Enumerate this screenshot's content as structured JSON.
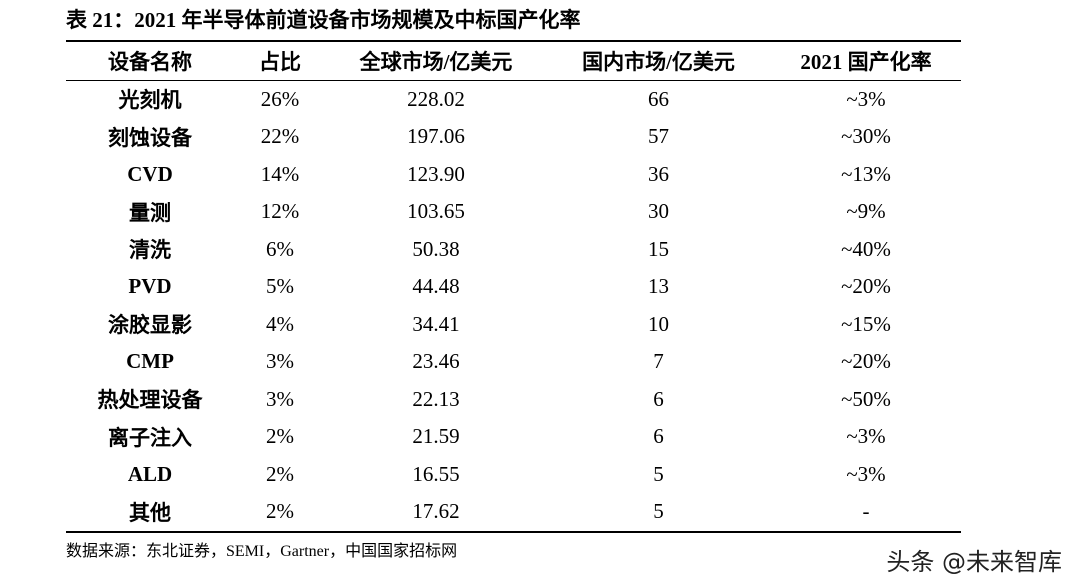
{
  "header": {
    "title": "表 21：2021 年半导体前道设备市场规模及中标国产化率"
  },
  "table": {
    "columns": [
      "设备名称",
      "占比",
      "全球市场/亿美元",
      "国内市场/亿美元",
      "2021 国产化率"
    ],
    "rows": [
      [
        "光刻机",
        "26%",
        "228.02",
        "66",
        "~3%"
      ],
      [
        "刻蚀设备",
        "22%",
        "197.06",
        "57",
        "~30%"
      ],
      [
        "CVD",
        "14%",
        "123.90",
        "36",
        "~13%"
      ],
      [
        "量测",
        "12%",
        "103.65",
        "30",
        "~9%"
      ],
      [
        "清洗",
        "6%",
        "50.38",
        "15",
        "~40%"
      ],
      [
        "PVD",
        "5%",
        "44.48",
        "13",
        "~20%"
      ],
      [
        "涂胶显影",
        "4%",
        "34.41",
        "10",
        "~15%"
      ],
      [
        "CMP",
        "3%",
        "23.46",
        "7",
        "~20%"
      ],
      [
        "热处理设备",
        "3%",
        "22.13",
        "6",
        "~50%"
      ],
      [
        "离子注入",
        "2%",
        "21.59",
        "6",
        "~3%"
      ],
      [
        "ALD",
        "2%",
        "16.55",
        "5",
        "~3%"
      ],
      [
        "其他",
        "2%",
        "17.62",
        "5",
        "-"
      ]
    ]
  },
  "footer": {
    "source": "数据来源：东北证券，SEMI，Gartner，中国国家招标网",
    "watermark": "头条 @未来智库"
  }
}
